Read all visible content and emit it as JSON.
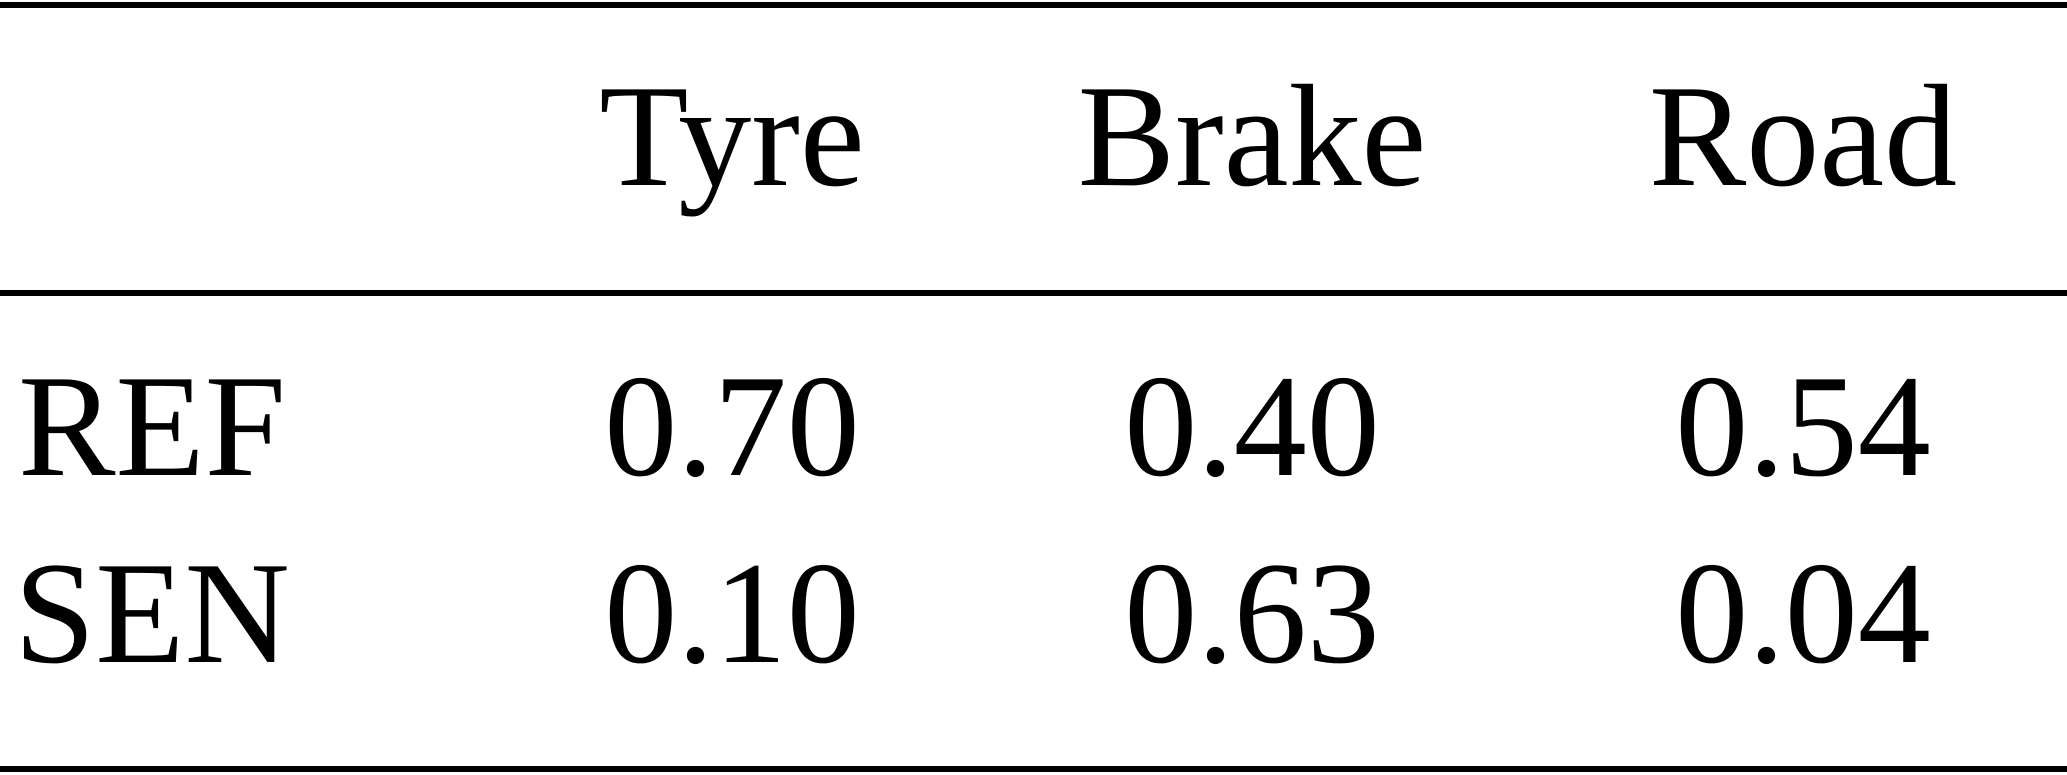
{
  "table": {
    "columns": [
      "Tyre",
      "Brake",
      "Road"
    ],
    "rows": [
      {
        "label": "REF",
        "cells": [
          "0.70",
          "0.40",
          "0.54"
        ]
      },
      {
        "label": "SEN",
        "cells": [
          "0.10",
          "0.63",
          "0.04"
        ]
      }
    ]
  }
}
